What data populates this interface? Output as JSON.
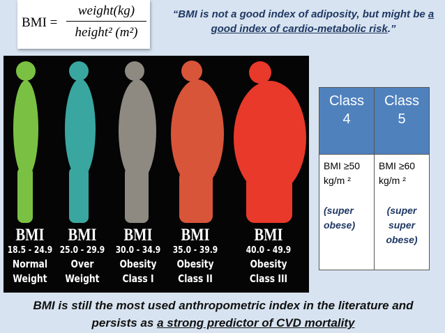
{
  "formula": {
    "lhs": "BMI =",
    "numerator": "weight(kg)",
    "denominator": "height² (m²)"
  },
  "quote": {
    "text": "“BMI is not a good index of adiposity, but might be ",
    "underlined": "a good index of cardio-metabolic risk",
    "end": ".”"
  },
  "figures": [
    {
      "bmi": "BMI",
      "range": "18.5 - 24.9",
      "line1": "Normal",
      "line2": "Weight"
    },
    {
      "bmi": "BMI",
      "range": "25.0 - 29.9",
      "line1": "Over",
      "line2": "Weight"
    },
    {
      "bmi": "BMI",
      "range": "30.0 - 34.9",
      "line1": "Obesity",
      "line2": "Class I"
    },
    {
      "bmi": "BMI",
      "range": "35.0 - 39.9",
      "line1": "Obesity",
      "line2": "Class II"
    },
    {
      "bmi": "BMI",
      "range": "40.0 - 49.9",
      "line1": "Obesity",
      "line2": "Class III"
    }
  ],
  "table": {
    "headers": [
      "Class 4",
      "Class 5"
    ],
    "rows": [
      [
        "BMI ≥50 kg/m ²",
        "BMI ≥60 kg/m ²"
      ],
      [
        "(super obese)",
        "(super super obese)"
      ]
    ]
  },
  "footer": {
    "text": "BMI is still the most used anthropometric index in the literature and persists as ",
    "underlined": "a strong predictor of CVD mortality"
  }
}
